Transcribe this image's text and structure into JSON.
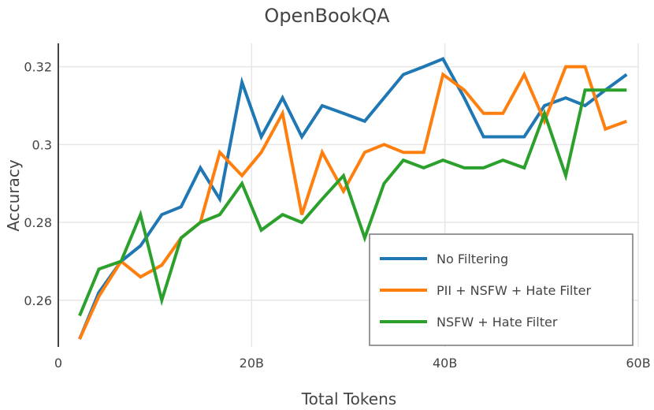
{
  "chart_data": {
    "type": "line",
    "title": "OpenBookQA",
    "xlabel": "Total Tokens",
    "ylabel": "Accuracy",
    "xlim": [
      0,
      60
    ],
    "ylim": [
      0.248,
      0.326
    ],
    "x_ticks": [
      {
        "value": 0,
        "label": "0"
      },
      {
        "value": 20,
        "label": "20B"
      },
      {
        "value": 40,
        "label": "40B"
      },
      {
        "value": 60,
        "label": "60B"
      }
    ],
    "y_ticks": [
      {
        "value": 0.26,
        "label": "0.26"
      },
      {
        "value": 0.28,
        "label": "0.28"
      },
      {
        "value": 0.3,
        "label": "0.3"
      },
      {
        "value": 0.32,
        "label": "0.32"
      }
    ],
    "grid": true,
    "legend_position": "bottom-right",
    "x": [
      2.2,
      4.2,
      6.5,
      8.5,
      10.7,
      12.7,
      14.7,
      16.7,
      19.0,
      21.0,
      23.2,
      25.2,
      27.3,
      29.5,
      31.7,
      33.7,
      35.7,
      37.8,
      39.8,
      42.0,
      44.0,
      46.0,
      48.2,
      50.3,
      52.5,
      54.5,
      56.6,
      58.8
    ],
    "series": [
      {
        "name": "No Filtering",
        "color": "#1f77b4",
        "values": [
          0.25,
          0.262,
          0.27,
          0.274,
          0.282,
          0.284,
          0.294,
          0.286,
          0.316,
          0.302,
          0.312,
          0.302,
          0.31,
          0.308,
          0.306,
          0.312,
          0.318,
          0.32,
          0.322,
          0.312,
          0.302,
          0.302,
          0.302,
          0.31,
          0.312,
          0.31,
          0.314,
          0.318
        ]
      },
      {
        "name": "PII + NSFW + Hate Filter",
        "color": "#ff7f0e",
        "values": [
          0.25,
          0.261,
          0.27,
          0.266,
          0.269,
          0.276,
          0.28,
          0.298,
          0.292,
          0.298,
          0.308,
          0.282,
          0.298,
          0.288,
          0.298,
          0.3,
          0.298,
          0.298,
          0.318,
          0.314,
          0.308,
          0.308,
          0.318,
          0.306,
          0.32,
          0.32,
          0.304,
          0.306
        ]
      },
      {
        "name": "NSFW + Hate Filter",
        "color": "#2ca02c",
        "values": [
          0.256,
          0.268,
          0.27,
          0.282,
          0.26,
          0.276,
          0.28,
          0.282,
          0.29,
          0.278,
          0.282,
          0.28,
          0.286,
          0.292,
          0.276,
          0.29,
          0.296,
          0.294,
          0.296,
          0.294,
          0.294,
          0.296,
          0.294,
          0.308,
          0.292,
          0.314,
          0.314,
          0.314
        ]
      }
    ]
  }
}
